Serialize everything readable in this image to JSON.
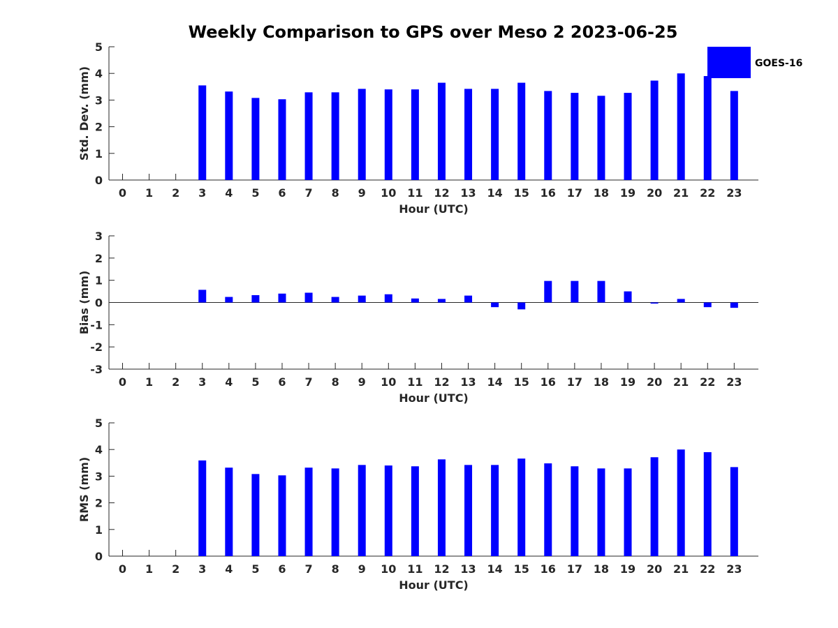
{
  "title": "Weekly Comparison to GPS over Meso 2 2023-06-25",
  "legend": {
    "label": "GOES-16",
    "color": "#0000ff"
  },
  "chart_data": [
    {
      "type": "bar",
      "categories": [
        "0",
        "1",
        "2",
        "3",
        "4",
        "5",
        "6",
        "7",
        "8",
        "9",
        "10",
        "11",
        "12",
        "13",
        "14",
        "15",
        "16",
        "17",
        "18",
        "19",
        "20",
        "21",
        "22",
        "23"
      ],
      "series": [
        {
          "name": "GOES-16",
          "values": [
            null,
            null,
            null,
            3.55,
            3.32,
            3.08,
            3.03,
            3.29,
            3.29,
            3.42,
            3.4,
            3.4,
            3.65,
            3.42,
            3.42,
            3.65,
            3.34,
            3.27,
            3.16,
            3.27,
            3.73,
            4.0,
            3.9,
            3.34
          ]
        }
      ],
      "xlabel": "Hour (UTC)",
      "ylabel": "Std. Dev. (mm)",
      "ylim": [
        0,
        5
      ],
      "yticks": [
        "0",
        "1",
        "2",
        "3",
        "4",
        "5"
      ],
      "color": "#0000ff"
    },
    {
      "type": "bar",
      "categories": [
        "0",
        "1",
        "2",
        "3",
        "4",
        "5",
        "6",
        "7",
        "8",
        "9",
        "10",
        "11",
        "12",
        "13",
        "14",
        "15",
        "16",
        "17",
        "18",
        "19",
        "20",
        "21",
        "22",
        "23"
      ],
      "series": [
        {
          "name": "GOES-16",
          "values": [
            null,
            null,
            null,
            0.57,
            0.25,
            0.33,
            0.4,
            0.44,
            0.25,
            0.31,
            0.37,
            0.18,
            0.16,
            0.31,
            -0.21,
            -0.31,
            0.97,
            0.97,
            0.97,
            0.5,
            -0.05,
            0.16,
            -0.21,
            -0.24
          ]
        }
      ],
      "xlabel": "Hour (UTC)",
      "ylabel": "Bias (mm)",
      "ylim": [
        -3,
        3
      ],
      "yticks": [
        "-3",
        "-2",
        "-1",
        "0",
        "1",
        "2",
        "3"
      ],
      "color": "#0000ff"
    },
    {
      "type": "bar",
      "categories": [
        "0",
        "1",
        "2",
        "3",
        "4",
        "5",
        "6",
        "7",
        "8",
        "9",
        "10",
        "11",
        "12",
        "13",
        "14",
        "15",
        "16",
        "17",
        "18",
        "19",
        "20",
        "21",
        "22",
        "23"
      ],
      "series": [
        {
          "name": "GOES-16",
          "values": [
            null,
            null,
            null,
            3.59,
            3.32,
            3.08,
            3.03,
            3.32,
            3.29,
            3.42,
            3.4,
            3.37,
            3.63,
            3.42,
            3.42,
            3.66,
            3.48,
            3.37,
            3.29,
            3.29,
            3.71,
            4.0,
            3.9,
            3.34
          ]
        }
      ],
      "xlabel": "Hour (UTC)",
      "ylabel": "RMS (mm)",
      "ylim": [
        0,
        5
      ],
      "yticks": [
        "0",
        "1",
        "2",
        "3",
        "4",
        "5"
      ],
      "color": "#0000ff"
    }
  ]
}
